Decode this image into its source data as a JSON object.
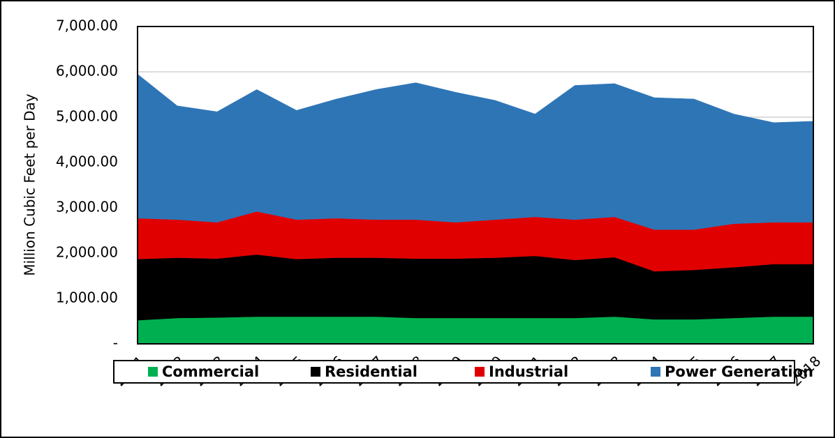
{
  "chart_data": {
    "type": "stacked_area",
    "y_axis_label": "Million Cubic Feet per Day",
    "categories": [
      "2001",
      "2002",
      "2003",
      "2004",
      "2005",
      "2006",
      "2007",
      "2008",
      "2009",
      "2010",
      "2011",
      "2012",
      "2013",
      "2014",
      "2015",
      "2016",
      "2017",
      "2018"
    ],
    "series": [
      {
        "name": "Commercial",
        "color": "#00b050",
        "values": [
          520,
          570,
          580,
          600,
          600,
          600,
          600,
          570,
          570,
          570,
          570,
          570,
          600,
          540,
          540,
          570,
          600,
          600
        ]
      },
      {
        "name": "Residential",
        "color": "#000000",
        "values": [
          1350,
          1330,
          1300,
          1370,
          1270,
          1300,
          1300,
          1310,
          1310,
          1330,
          1370,
          1280,
          1310,
          1060,
          1090,
          1120,
          1160,
          1160
        ]
      },
      {
        "name": "Industrial",
        "color": "#e00000",
        "values": [
          900,
          840,
          800,
          950,
          870,
          870,
          840,
          860,
          800,
          840,
          860,
          890,
          890,
          920,
          890,
          960,
          920,
          920
        ]
      },
      {
        "name": "Power Generation",
        "color": "#2e75b6",
        "values": [
          3180,
          2510,
          2440,
          2690,
          2410,
          2630,
          2870,
          3020,
          2870,
          2630,
          2270,
          2960,
          2940,
          2910,
          2880,
          2420,
          2200,
          2230
        ]
      }
    ],
    "ylim": [
      0,
      7000
    ],
    "yticks": [
      {
        "value": 0,
        "label": "-"
      },
      {
        "value": 1000,
        "label": "1,000.00"
      },
      {
        "value": 2000,
        "label": "2,000.00"
      },
      {
        "value": 3000,
        "label": "3,000.00"
      },
      {
        "value": 4000,
        "label": "4,000.00"
      },
      {
        "value": 5000,
        "label": "5,000.00"
      },
      {
        "value": 6000,
        "label": "6,000.00"
      },
      {
        "value": 7000,
        "label": "7,000.00"
      }
    ],
    "grid": true
  }
}
